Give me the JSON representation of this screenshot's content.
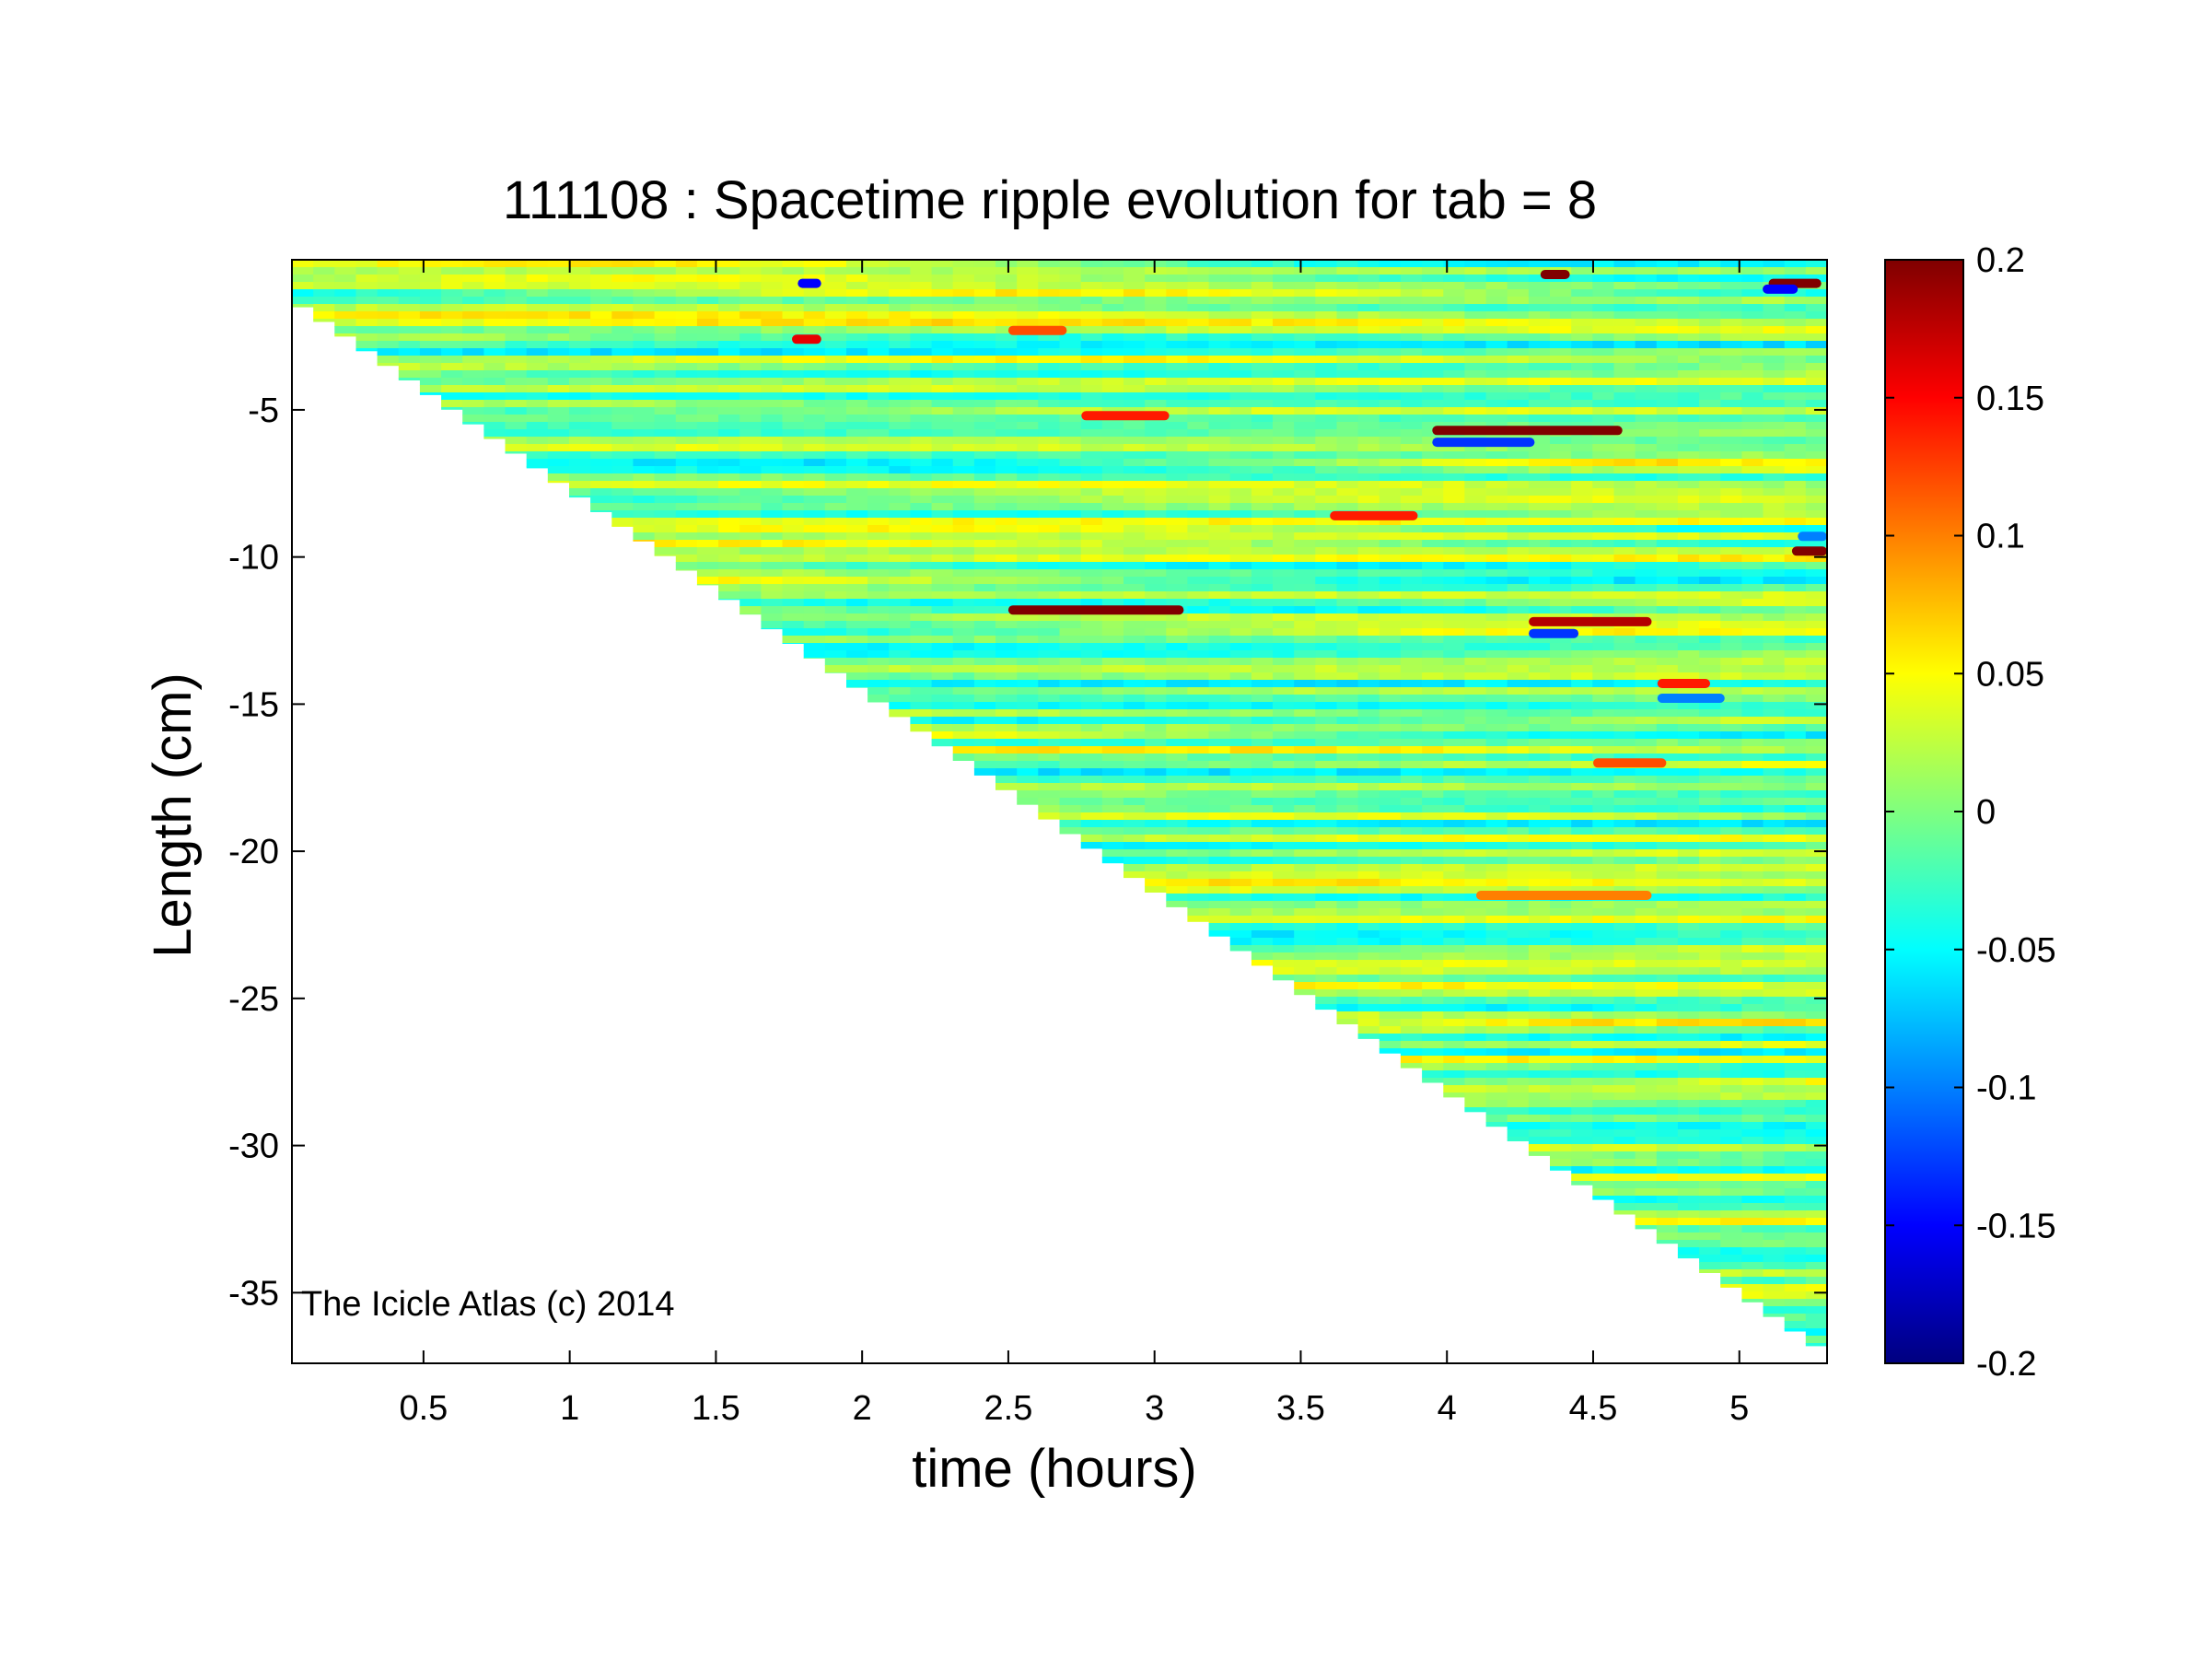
{
  "chart_data": {
    "type": "heatmap",
    "title": "111108 : Spacetime ripple evolution for tab = 8",
    "xlabel": "time (hours)",
    "ylabel": "Length (cm)",
    "xlim": [
      0.05,
      5.3
    ],
    "ylim": [
      -37.4,
      0.1
    ],
    "x_ticks": [
      0.5,
      1,
      1.5,
      2,
      2.5,
      3,
      3.5,
      4,
      4.5,
      5
    ],
    "x_tick_labels": [
      "0.5",
      "1",
      "1.5",
      "2",
      "2.5",
      "3",
      "3.5",
      "4",
      "4.5",
      "5"
    ],
    "y_ticks": [
      -5,
      -10,
      -15,
      -20,
      -25,
      -30,
      -35
    ],
    "y_tick_labels": [
      "-5",
      "-10",
      "-15",
      "-20",
      "-25",
      "-30",
      "-35"
    ],
    "colorbar": {
      "colormap": "jet",
      "clim": [
        -0.2,
        0.2
      ],
      "ticks": [
        0.2,
        0.15,
        0.1,
        0.05,
        0,
        -0.05,
        -0.1,
        -0.15,
        -0.2
      ],
      "tick_labels": [
        "0.2",
        "0.15",
        "0.1",
        "0.05",
        "0",
        "-0.05",
        "-0.1",
        "-0.15",
        "-0.2"
      ]
    },
    "data_boundary": {
      "description": "icicle tip position vs time",
      "points": [
        [
          0.05,
          -1.0
        ],
        [
          5.3,
          -36.8
        ]
      ]
    },
    "grid": false,
    "annotation": "The Icicle Atlas (c) 2014",
    "features": [
      {
        "x_start": 1.78,
        "x_end": 1.86,
        "y": -0.7,
        "value": -0.15
      },
      {
        "x_start": 1.76,
        "x_end": 1.86,
        "y": -2.6,
        "value": 0.16
      },
      {
        "x_start": 4.32,
        "x_end": 4.42,
        "y": -0.4,
        "value": 0.2
      },
      {
        "x_start": 5.1,
        "x_end": 5.28,
        "y": -0.7,
        "value": 0.2
      },
      {
        "x_start": 5.08,
        "x_end": 5.2,
        "y": -0.9,
        "value": -0.15
      },
      {
        "x_start": 3.95,
        "x_end": 4.6,
        "y": -5.7,
        "value": 0.2
      },
      {
        "x_start": 3.95,
        "x_end": 4.3,
        "y": -6.1,
        "value": -0.13
      },
      {
        "x_start": 2.75,
        "x_end": 3.05,
        "y": -5.2,
        "value": 0.14
      },
      {
        "x_start": 2.5,
        "x_end": 3.1,
        "y": -11.8,
        "value": 0.2
      },
      {
        "x_start": 4.28,
        "x_end": 4.7,
        "y": -12.2,
        "value": 0.18
      },
      {
        "x_start": 4.28,
        "x_end": 4.45,
        "y": -12.6,
        "value": -0.13
      },
      {
        "x_start": 4.72,
        "x_end": 4.9,
        "y": -14.3,
        "value": 0.14
      },
      {
        "x_start": 4.72,
        "x_end": 4.95,
        "y": -14.8,
        "value": -0.1
      },
      {
        "x_start": 5.18,
        "x_end": 5.3,
        "y": -9.8,
        "value": 0.2
      },
      {
        "x_start": 5.2,
        "x_end": 5.3,
        "y": -9.3,
        "value": -0.1
      },
      {
        "x_start": 3.6,
        "x_end": 3.9,
        "y": -8.6,
        "value": 0.14
      },
      {
        "x_start": 4.1,
        "x_end": 4.7,
        "y": -21.5,
        "value": 0.1
      },
      {
        "x_start": 2.5,
        "x_end": 2.7,
        "y": -2.3,
        "value": 0.12
      },
      {
        "x_start": 4.5,
        "x_end": 4.75,
        "y": -17.0,
        "value": 0.12
      }
    ]
  }
}
